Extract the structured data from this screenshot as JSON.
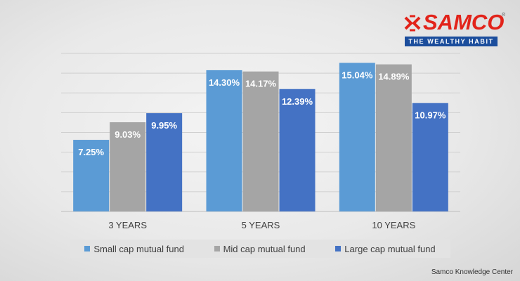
{
  "logo": {
    "text": "SAMCO",
    "tagline": "THE WEALTHY HABIT",
    "registered": "®"
  },
  "credit": "Samco Knowledge Center",
  "colors": {
    "small": "#5b9bd5",
    "mid": "#a5a5a5",
    "large": "#4472c4",
    "brand_red": "#e2231a",
    "brand_blue": "#1b4d9c"
  },
  "chart_data": {
    "type": "bar",
    "categories": [
      "3 YEARS",
      "5 YEARS",
      "10 YEARS"
    ],
    "series": [
      {
        "name": "Small cap mutual fund",
        "values": [
          7.25,
          14.3,
          15.04
        ],
        "labels": [
          "7.25%",
          "14.30%",
          "15.04%"
        ]
      },
      {
        "name": "Mid cap mutual fund",
        "values": [
          9.03,
          14.17,
          14.89
        ],
        "labels": [
          "9.03%",
          "14.17%",
          "14.89%"
        ]
      },
      {
        "name": "Large cap mutual fund",
        "values": [
          9.95,
          12.39,
          10.97
        ],
        "labels": [
          "9.95%",
          "12.39%",
          "10.97%"
        ]
      }
    ],
    "ylim": [
      0,
      16
    ],
    "grid": true,
    "legend_position": "bottom"
  }
}
